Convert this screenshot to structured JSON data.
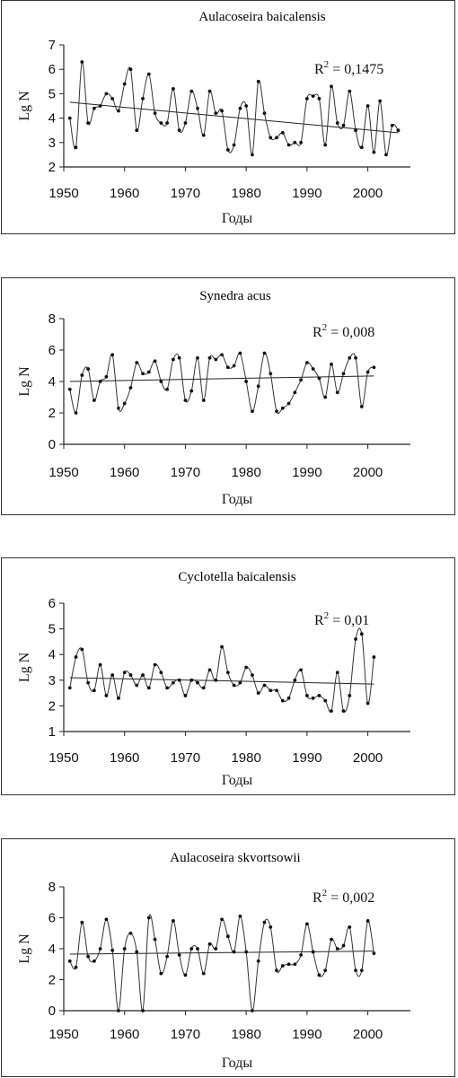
{
  "chart_data": [
    {
      "type": "line",
      "title": "Aulacoseira baicalensis",
      "xlabel": "Годы",
      "ylabel": "Lg N",
      "r2_label": "R",
      "r2_sup": "2",
      "r2_value": " = 0,1475",
      "xlim": [
        1950,
        2007
      ],
      "ylim": [
        2,
        7
      ],
      "xticks": [
        1950,
        1960,
        1970,
        1980,
        1990,
        2000
      ],
      "yticks": [
        2,
        3,
        4,
        5,
        6,
        7
      ],
      "x": [
        1951,
        1952,
        1953,
        1954,
        1955,
        1956,
        1957,
        1958,
        1959,
        1960,
        1961,
        1962,
        1963,
        1964,
        1965,
        1966,
        1967,
        1968,
        1969,
        1970,
        1971,
        1972,
        1973,
        1974,
        1975,
        1976,
        1977,
        1978,
        1979,
        1980,
        1981,
        1982,
        1983,
        1984,
        1985,
        1986,
        1987,
        1988,
        1989,
        1990,
        1991,
        1992,
        1993,
        1994,
        1995,
        1996,
        1997,
        1998,
        1999,
        2000,
        2001,
        2002,
        2003,
        2004,
        2005
      ],
      "values": [
        4.0,
        2.8,
        6.3,
        3.8,
        4.4,
        4.5,
        5.0,
        4.8,
        4.3,
        5.4,
        6.0,
        3.5,
        4.8,
        5.8,
        4.2,
        3.8,
        3.8,
        5.2,
        3.5,
        3.8,
        5.1,
        4.4,
        3.3,
        5.1,
        4.2,
        4.3,
        2.7,
        2.9,
        4.4,
        4.5,
        2.5,
        5.5,
        4.2,
        3.2,
        3.2,
        3.4,
        2.9,
        3.0,
        3.0,
        4.8,
        4.9,
        4.8,
        2.9,
        5.3,
        3.8,
        3.7,
        5.1,
        3.5,
        2.8,
        4.5,
        2.6,
        4.7,
        2.5,
        3.7,
        3.5
      ],
      "trend": [
        4.65,
        3.4
      ]
    },
    {
      "type": "line",
      "title": "Synedra acus",
      "xlabel": "Годы",
      "ylabel": "Lg N",
      "r2_label": "R",
      "r2_sup": "2",
      "r2_value": " = 0,008",
      "xlim": [
        1950,
        2007
      ],
      "ylim": [
        0,
        8
      ],
      "xticks": [
        1950,
        1960,
        1970,
        1980,
        1990,
        2000
      ],
      "yticks": [
        0,
        2,
        4,
        6,
        8
      ],
      "x": [
        1951,
        1952,
        1953,
        1954,
        1955,
        1956,
        1957,
        1958,
        1959,
        1960,
        1961,
        1962,
        1963,
        1964,
        1965,
        1966,
        1967,
        1968,
        1969,
        1970,
        1971,
        1972,
        1973,
        1974,
        1975,
        1976,
        1977,
        1978,
        1979,
        1980,
        1981,
        1982,
        1983,
        1984,
        1985,
        1986,
        1987,
        1988,
        1989,
        1990,
        1991,
        1992,
        1993,
        1994,
        1995,
        1996,
        1997,
        1998,
        1999,
        2000,
        2001
      ],
      "values": [
        3.5,
        2.0,
        4.4,
        4.8,
        2.8,
        4.0,
        4.3,
        5.7,
        2.3,
        2.6,
        3.6,
        5.2,
        4.5,
        4.6,
        5.3,
        4.0,
        3.5,
        5.4,
        5.5,
        2.8,
        3.4,
        5.5,
        2.8,
        5.5,
        5.4,
        5.7,
        4.9,
        5.0,
        5.8,
        4.0,
        2.1,
        3.7,
        5.8,
        4.5,
        2.1,
        2.3,
        2.6,
        3.3,
        4.1,
        5.2,
        4.8,
        4.2,
        3.0,
        5.1,
        3.3,
        4.5,
        5.5,
        5.5,
        2.4,
        4.6,
        4.9
      ],
      "trend": [
        4.0,
        4.35
      ]
    },
    {
      "type": "line",
      "title": "Cyclotella baicalensis",
      "xlabel": "Годы",
      "ylabel": "Lg N",
      "r2_label": "R",
      "r2_sup": "2",
      "r2_value": " = 0,01",
      "xlim": [
        1950,
        2007
      ],
      "ylim": [
        1,
        6
      ],
      "xticks": [
        1950,
        1960,
        1970,
        1980,
        1990,
        2000
      ],
      "yticks": [
        1,
        2,
        3,
        4,
        5,
        6
      ],
      "x": [
        1951,
        1952,
        1953,
        1954,
        1955,
        1956,
        1957,
        1958,
        1959,
        1960,
        1961,
        1962,
        1963,
        1964,
        1965,
        1966,
        1967,
        1968,
        1969,
        1970,
        1971,
        1972,
        1973,
        1974,
        1975,
        1976,
        1977,
        1978,
        1979,
        1980,
        1981,
        1982,
        1983,
        1984,
        1985,
        1986,
        1987,
        1988,
        1989,
        1990,
        1991,
        1992,
        1993,
        1994,
        1995,
        1996,
        1997,
        1998,
        1999,
        2000,
        2001
      ],
      "values": [
        2.7,
        3.9,
        4.2,
        2.9,
        2.6,
        3.6,
        2.4,
        3.2,
        2.3,
        3.3,
        3.2,
        2.8,
        3.2,
        2.7,
        3.6,
        3.3,
        2.7,
        2.9,
        3.0,
        2.4,
        3.0,
        2.9,
        2.7,
        3.4,
        3.0,
        4.3,
        3.3,
        2.8,
        2.9,
        3.5,
        3.2,
        2.5,
        2.8,
        2.6,
        2.6,
        2.2,
        2.3,
        3.0,
        3.4,
        2.4,
        2.3,
        2.4,
        2.2,
        1.8,
        3.3,
        1.8,
        2.4,
        4.6,
        4.8,
        2.1,
        3.9
      ],
      "trend": [
        3.1,
        2.85
      ]
    },
    {
      "type": "line",
      "title": "Aulacoseira skvortsowii",
      "xlabel": "Годы",
      "ylabel": "Lg N",
      "r2_label": "R",
      "r2_sup": "2",
      "r2_value": " = 0,002",
      "xlim": [
        1950,
        2007
      ],
      "ylim": [
        0,
        8
      ],
      "xticks": [
        1950,
        1960,
        1970,
        1980,
        1990,
        2000
      ],
      "yticks": [
        0,
        2,
        4,
        6,
        8
      ],
      "x": [
        1951,
        1952,
        1953,
        1954,
        1955,
        1956,
        1957,
        1958,
        1959,
        1960,
        1961,
        1962,
        1963,
        1964,
        1965,
        1966,
        1967,
        1968,
        1969,
        1970,
        1971,
        1972,
        1973,
        1974,
        1975,
        1976,
        1977,
        1978,
        1979,
        1980,
        1981,
        1982,
        1983,
        1984,
        1985,
        1986,
        1987,
        1988,
        1989,
        1990,
        1991,
        1992,
        1993,
        1994,
        1995,
        1996,
        1997,
        1998,
        1999,
        2000,
        2001
      ],
      "values": [
        3.2,
        2.8,
        5.7,
        3.5,
        3.2,
        4.0,
        5.9,
        3.9,
        0.0,
        4.0,
        5.0,
        3.8,
        0.0,
        6.0,
        4.6,
        2.4,
        3.5,
        5.8,
        3.6,
        2.3,
        4.0,
        4.0,
        2.4,
        4.3,
        4.0,
        5.9,
        4.8,
        3.8,
        6.1,
        3.8,
        0.0,
        3.2,
        5.7,
        5.4,
        2.6,
        2.9,
        3.0,
        3.0,
        3.6,
        5.6,
        3.8,
        2.3,
        2.6,
        4.6,
        4.0,
        4.2,
        5.4,
        2.6,
        2.6,
        5.8,
        3.7
      ],
      "trend": [
        3.65,
        3.85
      ]
    }
  ]
}
